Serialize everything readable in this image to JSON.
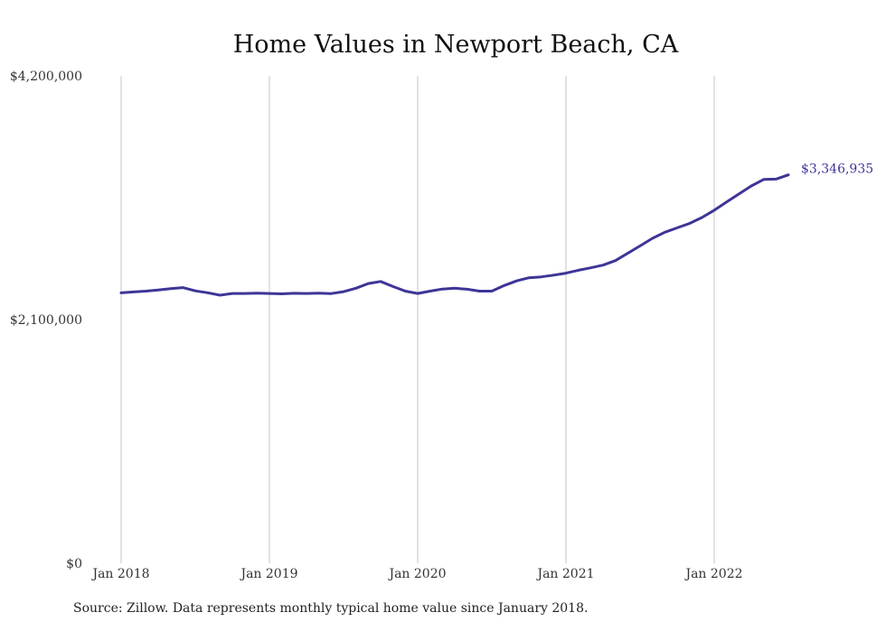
{
  "chart_data": {
    "type": "line",
    "title": "Home Values in Newport Beach, CA",
    "ylim": [
      0,
      4200000
    ],
    "yticks": [
      0,
      2100000,
      4200000
    ],
    "ytick_labels": [
      "$0",
      "$2,100,000",
      "$4,200,000"
    ],
    "xticks": [
      "2018-01",
      "2019-01",
      "2020-01",
      "2021-01",
      "2022-01"
    ],
    "xtick_labels": [
      "Jan 2018",
      "Jan 2019",
      "Jan 2020",
      "Jan 2021",
      "Jan 2022"
    ],
    "grid": "vertical",
    "line_color": "#3d3597",
    "end_label": "$3,346,935",
    "series": [
      {
        "x": [
          "2018-01",
          "2018-02",
          "2018-03",
          "2018-04",
          "2018-05",
          "2018-06",
          "2018-07",
          "2018-08",
          "2018-09",
          "2018-10",
          "2018-11",
          "2018-12",
          "2019-01",
          "2019-02",
          "2019-03",
          "2019-04",
          "2019-05",
          "2019-06",
          "2019-07",
          "2019-08",
          "2019-09",
          "2019-10",
          "2019-11",
          "2019-12",
          "2020-01",
          "2020-02",
          "2020-03",
          "2020-04",
          "2020-05",
          "2020-06",
          "2020-07",
          "2020-08",
          "2020-09",
          "2020-10",
          "2020-11",
          "2020-12",
          "2021-01",
          "2021-02",
          "2021-03",
          "2021-04",
          "2021-05",
          "2021-06",
          "2021-07",
          "2021-08",
          "2021-09",
          "2021-10",
          "2021-11",
          "2021-12",
          "2022-01",
          "2022-02",
          "2022-03",
          "2022-04",
          "2022-05",
          "2022-06",
          "2022-07"
        ],
        "values": [
          2330000,
          2338000,
          2345000,
          2355000,
          2367000,
          2375000,
          2347000,
          2331000,
          2310000,
          2325000,
          2325000,
          2327000,
          2325000,
          2322000,
          2326000,
          2325000,
          2327000,
          2324000,
          2340000,
          2370000,
          2410000,
          2428000,
          2385000,
          2345000,
          2325000,
          2345000,
          2363000,
          2370000,
          2361000,
          2345000,
          2345000,
          2393000,
          2433000,
          2460000,
          2468000,
          2483000,
          2500000,
          2525000,
          2546000,
          2569000,
          2608000,
          2671000,
          2735000,
          2800000,
          2852000,
          2890000,
          2928000,
          2979000,
          3042000,
          3113000,
          3182000,
          3251000,
          3307000,
          3310000,
          3346935
        ]
      }
    ],
    "source": "Source: Zillow. Data represents monthly typical home value since January 2018."
  }
}
